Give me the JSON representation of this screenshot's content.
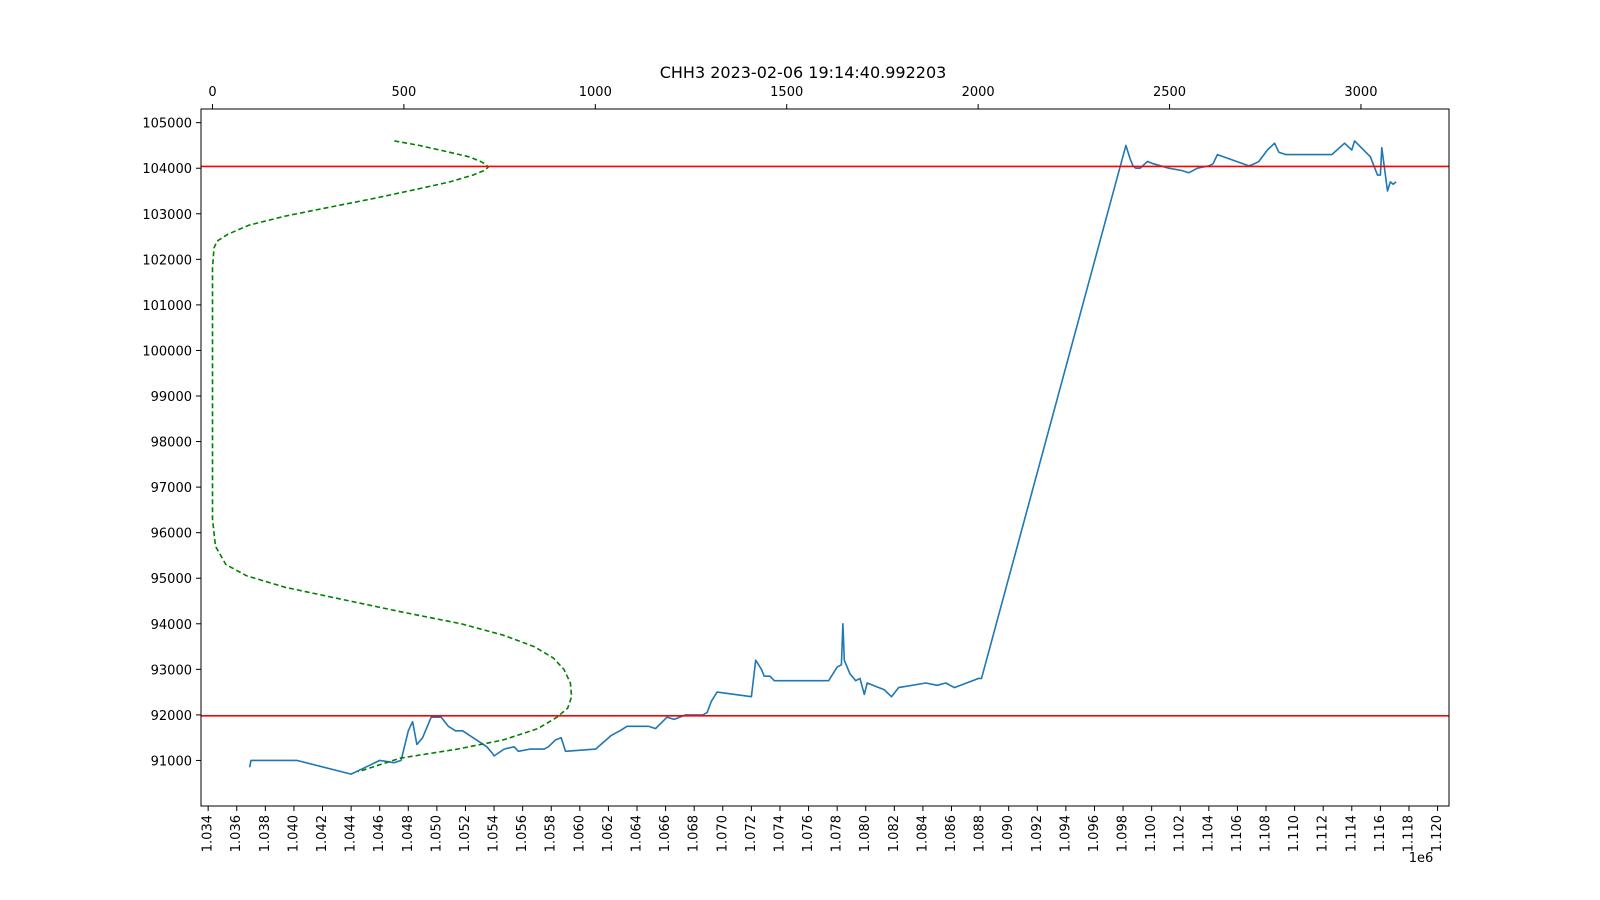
{
  "chart_data": {
    "type": "line",
    "title": "CHH3 2023-02-06 19:14:40.992203",
    "xlabel": "",
    "ylabel": "",
    "x_offset_label": "1e6",
    "xlim": [
      1033500,
      1120800
    ],
    "ylim": [
      90000,
      105300
    ],
    "x_tick_labels": [
      "1.034",
      "1.036",
      "1.038",
      "1.040",
      "1.042",
      "1.044",
      "1.046",
      "1.048",
      "1.050",
      "1.052",
      "1.054",
      "1.056",
      "1.058",
      "1.060",
      "1.062",
      "1.064",
      "1.066",
      "1.068",
      "1.070",
      "1.072",
      "1.074",
      "1.076",
      "1.078",
      "1.080",
      "1.082",
      "1.084",
      "1.086",
      "1.088",
      "1.090",
      "1.092",
      "1.094",
      "1.096",
      "1.098",
      "1.100",
      "1.102",
      "1.104",
      "1.106",
      "1.108",
      "1.110",
      "1.112",
      "1.114",
      "1.116",
      "1.118",
      "1.120"
    ],
    "x_ticks": [
      1034000,
      1036000,
      1038000,
      1040000,
      1042000,
      1044000,
      1046000,
      1048000,
      1050000,
      1052000,
      1054000,
      1056000,
      1058000,
      1060000,
      1062000,
      1064000,
      1066000,
      1068000,
      1070000,
      1072000,
      1074000,
      1076000,
      1078000,
      1080000,
      1082000,
      1084000,
      1086000,
      1088000,
      1090000,
      1092000,
      1094000,
      1096000,
      1098000,
      1100000,
      1102000,
      1104000,
      1106000,
      1108000,
      1110000,
      1112000,
      1114000,
      1116000,
      1118000,
      1120000
    ],
    "y_ticks": [
      91000,
      92000,
      93000,
      94000,
      95000,
      96000,
      97000,
      98000,
      99000,
      100000,
      101000,
      102000,
      103000,
      104000,
      105000
    ],
    "y_tick_labels": [
      "91000",
      "92000",
      "93000",
      "94000",
      "95000",
      "96000",
      "97000",
      "98000",
      "99000",
      "100000",
      "101000",
      "102000",
      "103000",
      "104000",
      "105000"
    ],
    "top_xlim": [
      -30,
      3230
    ],
    "top_x_ticks": [
      0,
      500,
      1000,
      1500,
      2000,
      2500,
      3000
    ],
    "top_x_tick_labels": [
      "0",
      "500",
      "1000",
      "1500",
      "2000",
      "2500",
      "3000"
    ],
    "grid": false,
    "series": [
      {
        "color": "#1f77b4",
        "style": "solid",
        "x": [
          1036900,
          1037000,
          1040200,
          1044000,
          1045000,
          1046000,
          1047000,
          1047500,
          1048000,
          1048300,
          1048600,
          1049000,
          1049600,
          1050300,
          1050800,
          1051300,
          1051800,
          1053500,
          1053900,
          1054000,
          1054700,
          1055400,
          1055700,
          1056500,
          1057500,
          1057800,
          1058300,
          1058700,
          1059000,
          1061100,
          1062200,
          1062500,
          1062800,
          1063300,
          1064800,
          1065300,
          1066100,
          1066600,
          1067400,
          1068600,
          1068900,
          1069200,
          1069600,
          1072000,
          1072300,
          1072700,
          1072900,
          1073300,
          1073600,
          1077200,
          1077400,
          1078000,
          1078300,
          1078400,
          1078500,
          1078900,
          1079300,
          1079600,
          1079900,
          1080100,
          1081300,
          1081800,
          1082300,
          1084200,
          1085000,
          1085600,
          1086200,
          1087900,
          1088100,
          1098200,
          1098500,
          1098700,
          1098900,
          1099200,
          1099700,
          1100100,
          1101200,
          1102100,
          1102600,
          1103200,
          1104000,
          1104300,
          1104600,
          1106800,
          1107200,
          1107500,
          1108100,
          1108600,
          1108900,
          1109400,
          1110200,
          1112600,
          1113500,
          1114000,
          1114200,
          1115300,
          1115800,
          1116000,
          1116100,
          1116500,
          1116700,
          1116900,
          1117100
        ],
        "y": [
          90850,
          91000,
          91000,
          90700,
          90850,
          91000,
          90950,
          91000,
          91650,
          91850,
          91350,
          91500,
          91950,
          91950,
          91750,
          91650,
          91650,
          91300,
          91150,
          91100,
          91250,
          91300,
          91200,
          91250,
          91250,
          91300,
          91450,
          91500,
          91200,
          91250,
          91550,
          91600,
          91650,
          91750,
          91750,
          91700,
          91950,
          91900,
          92000,
          92000,
          92050,
          92300,
          92500,
          92400,
          93200,
          93000,
          92850,
          92850,
          92750,
          92750,
          92750,
          93050,
          93100,
          94000,
          93200,
          92900,
          92750,
          92800,
          92450,
          92700,
          92550,
          92400,
          92600,
          92700,
          92650,
          92700,
          92600,
          92800,
          92800,
          104500,
          104200,
          104050,
          104000,
          104000,
          104150,
          104100,
          104000,
          103950,
          103900,
          104000,
          104050,
          104100,
          104300,
          104050,
          104100,
          104150,
          104400,
          104550,
          104350,
          104300,
          104300,
          104300,
          104550,
          104400,
          104600,
          104250,
          103850,
          103850,
          104450,
          103500,
          103700,
          103650,
          103700
        ]
      },
      {
        "color": "#008000",
        "style": "dashed",
        "axis": "top",
        "x": [
          475,
          540,
          620,
          670,
          700,
          715,
          720,
          710,
          680,
          620,
          540,
          430,
          310,
          190,
          95,
          40,
          12,
          4,
          0,
          0,
          0,
          0,
          0,
          0,
          0,
          0,
          0,
          0,
          0,
          0,
          8,
          35,
          90,
          190,
          330,
          500,
          650,
          760,
          840,
          890,
          918,
          935,
          938,
          928,
          900,
          850,
          760,
          640,
          490,
          380
        ],
        "y": [
          104600,
          104500,
          104350,
          104250,
          104150,
          104080,
          104020,
          103950,
          103850,
          103700,
          103550,
          103350,
          103150,
          102950,
          102750,
          102550,
          102400,
          102250,
          101800,
          101300,
          100800,
          100300,
          99800,
          99300,
          98800,
          98300,
          97800,
          97300,
          96800,
          96300,
          95700,
          95300,
          95050,
          94800,
          94550,
          94250,
          94000,
          93750,
          93500,
          93250,
          93000,
          92700,
          92400,
          92150,
          91950,
          91700,
          91450,
          91250,
          91050,
          90750
        ]
      }
    ],
    "hlines": [
      {
        "y": 104040,
        "color": "#ff0000"
      },
      {
        "y": 91980,
        "color": "#ff0000"
      }
    ]
  }
}
